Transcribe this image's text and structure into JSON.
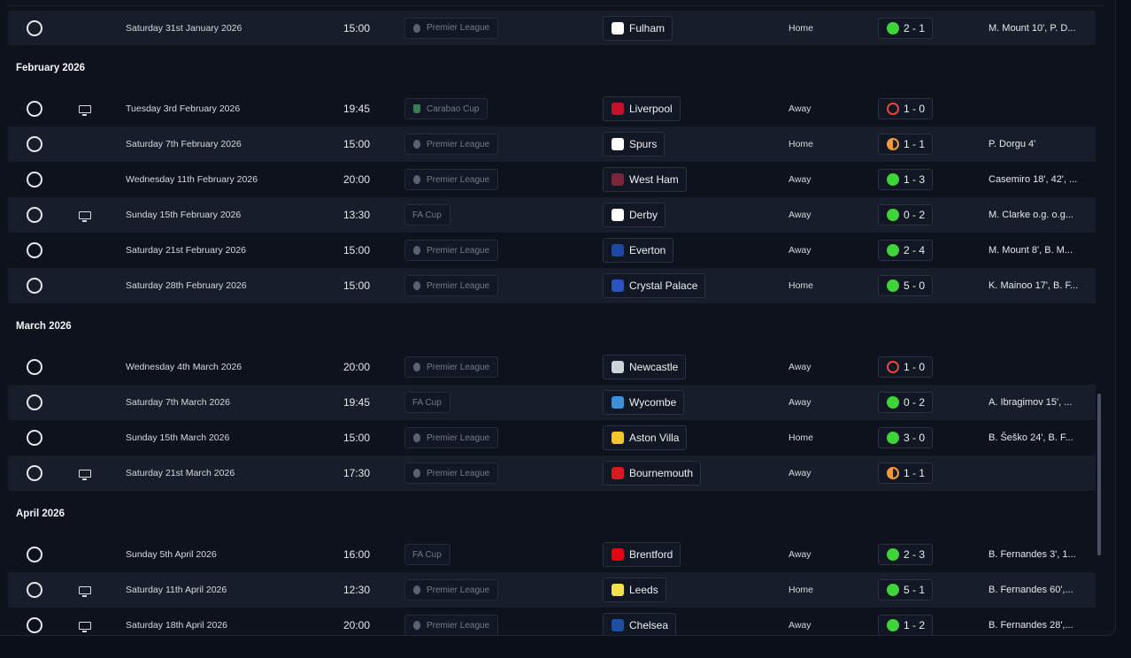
{
  "months": [
    {
      "label": "",
      "fixtures": [
        {
          "date": "Saturday 31st January 2026",
          "time": "15:00",
          "competition": "Premier League",
          "comp_icon": "premier-league-icon",
          "team": "Fulham",
          "crest_color": "#ffffff",
          "venue": "Home",
          "outcome": "win",
          "score": "2 - 1",
          "scorers": "M. Mount 10', P. D...",
          "tv": false
        }
      ]
    },
    {
      "label": "February 2026",
      "fixtures": [
        {
          "date": "Tuesday 3rd February 2026",
          "time": "19:45",
          "competition": "Carabao Cup",
          "comp_icon": "carabao-cup-icon",
          "team": "Liverpool",
          "crest_color": "#c8102e",
          "venue": "Away",
          "outcome": "loss",
          "score": "1 - 0",
          "scorers": "",
          "tv": true
        },
        {
          "date": "Saturday 7th February 2026",
          "time": "15:00",
          "competition": "Premier League",
          "comp_icon": "premier-league-icon",
          "team": "Spurs",
          "crest_color": "#ffffff",
          "venue": "Home",
          "outcome": "draw",
          "score": "1 - 1",
          "scorers": "P. Dorgu 4'",
          "tv": false
        },
        {
          "date": "Wednesday 11th February 2026",
          "time": "20:00",
          "competition": "Premier League",
          "comp_icon": "premier-league-icon",
          "team": "West Ham",
          "crest_color": "#7a263a",
          "venue": "Away",
          "outcome": "win",
          "score": "1 - 3",
          "scorers": "Casemiro 18', 42', ...",
          "tv": false
        },
        {
          "date": "Sunday 15th February 2026",
          "time": "13:30",
          "competition": "FA Cup",
          "comp_icon": "",
          "team": "Derby",
          "crest_color": "#ffffff",
          "venue": "Away",
          "outcome": "win",
          "score": "0 - 2",
          "scorers": "M. Clarke o.g. o.g...",
          "tv": true
        },
        {
          "date": "Saturday 21st February 2026",
          "time": "15:00",
          "competition": "Premier League",
          "comp_icon": "premier-league-icon",
          "team": "Everton",
          "crest_color": "#1b4aa0",
          "venue": "Away",
          "outcome": "win",
          "score": "2 - 4",
          "scorers": "M. Mount 8', B. M...",
          "tv": false
        },
        {
          "date": "Saturday 28th February 2026",
          "time": "15:00",
          "competition": "Premier League",
          "comp_icon": "premier-league-icon",
          "team": "Crystal Palace",
          "crest_color": "#2a54c4",
          "venue": "Home",
          "outcome": "win",
          "score": "5 - 0",
          "scorers": "K. Mainoo 17', B. F...",
          "tv": false
        }
      ]
    },
    {
      "label": "March 2026",
      "fixtures": [
        {
          "date": "Wednesday 4th March 2026",
          "time": "20:00",
          "competition": "Premier League",
          "comp_icon": "premier-league-icon",
          "team": "Newcastle",
          "crest_color": "#cfd3da",
          "venue": "Away",
          "outcome": "loss",
          "score": "1 - 0",
          "scorers": "",
          "tv": false
        },
        {
          "date": "Saturday 7th March 2026",
          "time": "19:45",
          "competition": "FA Cup",
          "comp_icon": "",
          "team": "Wycombe",
          "crest_color": "#3d8fd8",
          "venue": "Away",
          "outcome": "win",
          "score": "0 - 2",
          "scorers": "A. Ibragimov 15', ...",
          "tv": false
        },
        {
          "date": "Sunday 15th March 2026",
          "time": "15:00",
          "competition": "Premier League",
          "comp_icon": "premier-league-icon",
          "team": "Aston Villa",
          "crest_color": "#f3c72c",
          "venue": "Home",
          "outcome": "win",
          "score": "3 - 0",
          "scorers": "B. Šeško 24', B. F...",
          "tv": false
        },
        {
          "date": "Saturday 21st March 2026",
          "time": "17:30",
          "competition": "Premier League",
          "comp_icon": "premier-league-icon",
          "team": "Bournemouth",
          "crest_color": "#d71920",
          "venue": "Away",
          "outcome": "draw",
          "score": "1 - 1",
          "scorers": "",
          "tv": true
        }
      ]
    },
    {
      "label": "April 2026",
      "fixtures": [
        {
          "date": "Sunday 5th April 2026",
          "time": "16:00",
          "competition": "FA Cup",
          "comp_icon": "",
          "team": "Brentford",
          "crest_color": "#e30613",
          "venue": "Away",
          "outcome": "win",
          "score": "2 - 3",
          "scorers": "B. Fernandes 3', 1...",
          "tv": false
        },
        {
          "date": "Saturday 11th April 2026",
          "time": "12:30",
          "competition": "Premier League",
          "comp_icon": "premier-league-icon",
          "team": "Leeds",
          "crest_color": "#f2e14c",
          "venue": "Home",
          "outcome": "win",
          "score": "5 - 1",
          "scorers": "B. Fernandes 60',...",
          "tv": true
        },
        {
          "date": "Saturday 18th April 2026",
          "time": "20:00",
          "competition": "Premier League",
          "comp_icon": "premier-league-icon",
          "team": "Chelsea",
          "crest_color": "#1d4fa3",
          "venue": "Away",
          "outcome": "win",
          "score": "1 - 2",
          "scorers": "B. Fernandes 28',...",
          "tv": true
        }
      ]
    }
  ]
}
